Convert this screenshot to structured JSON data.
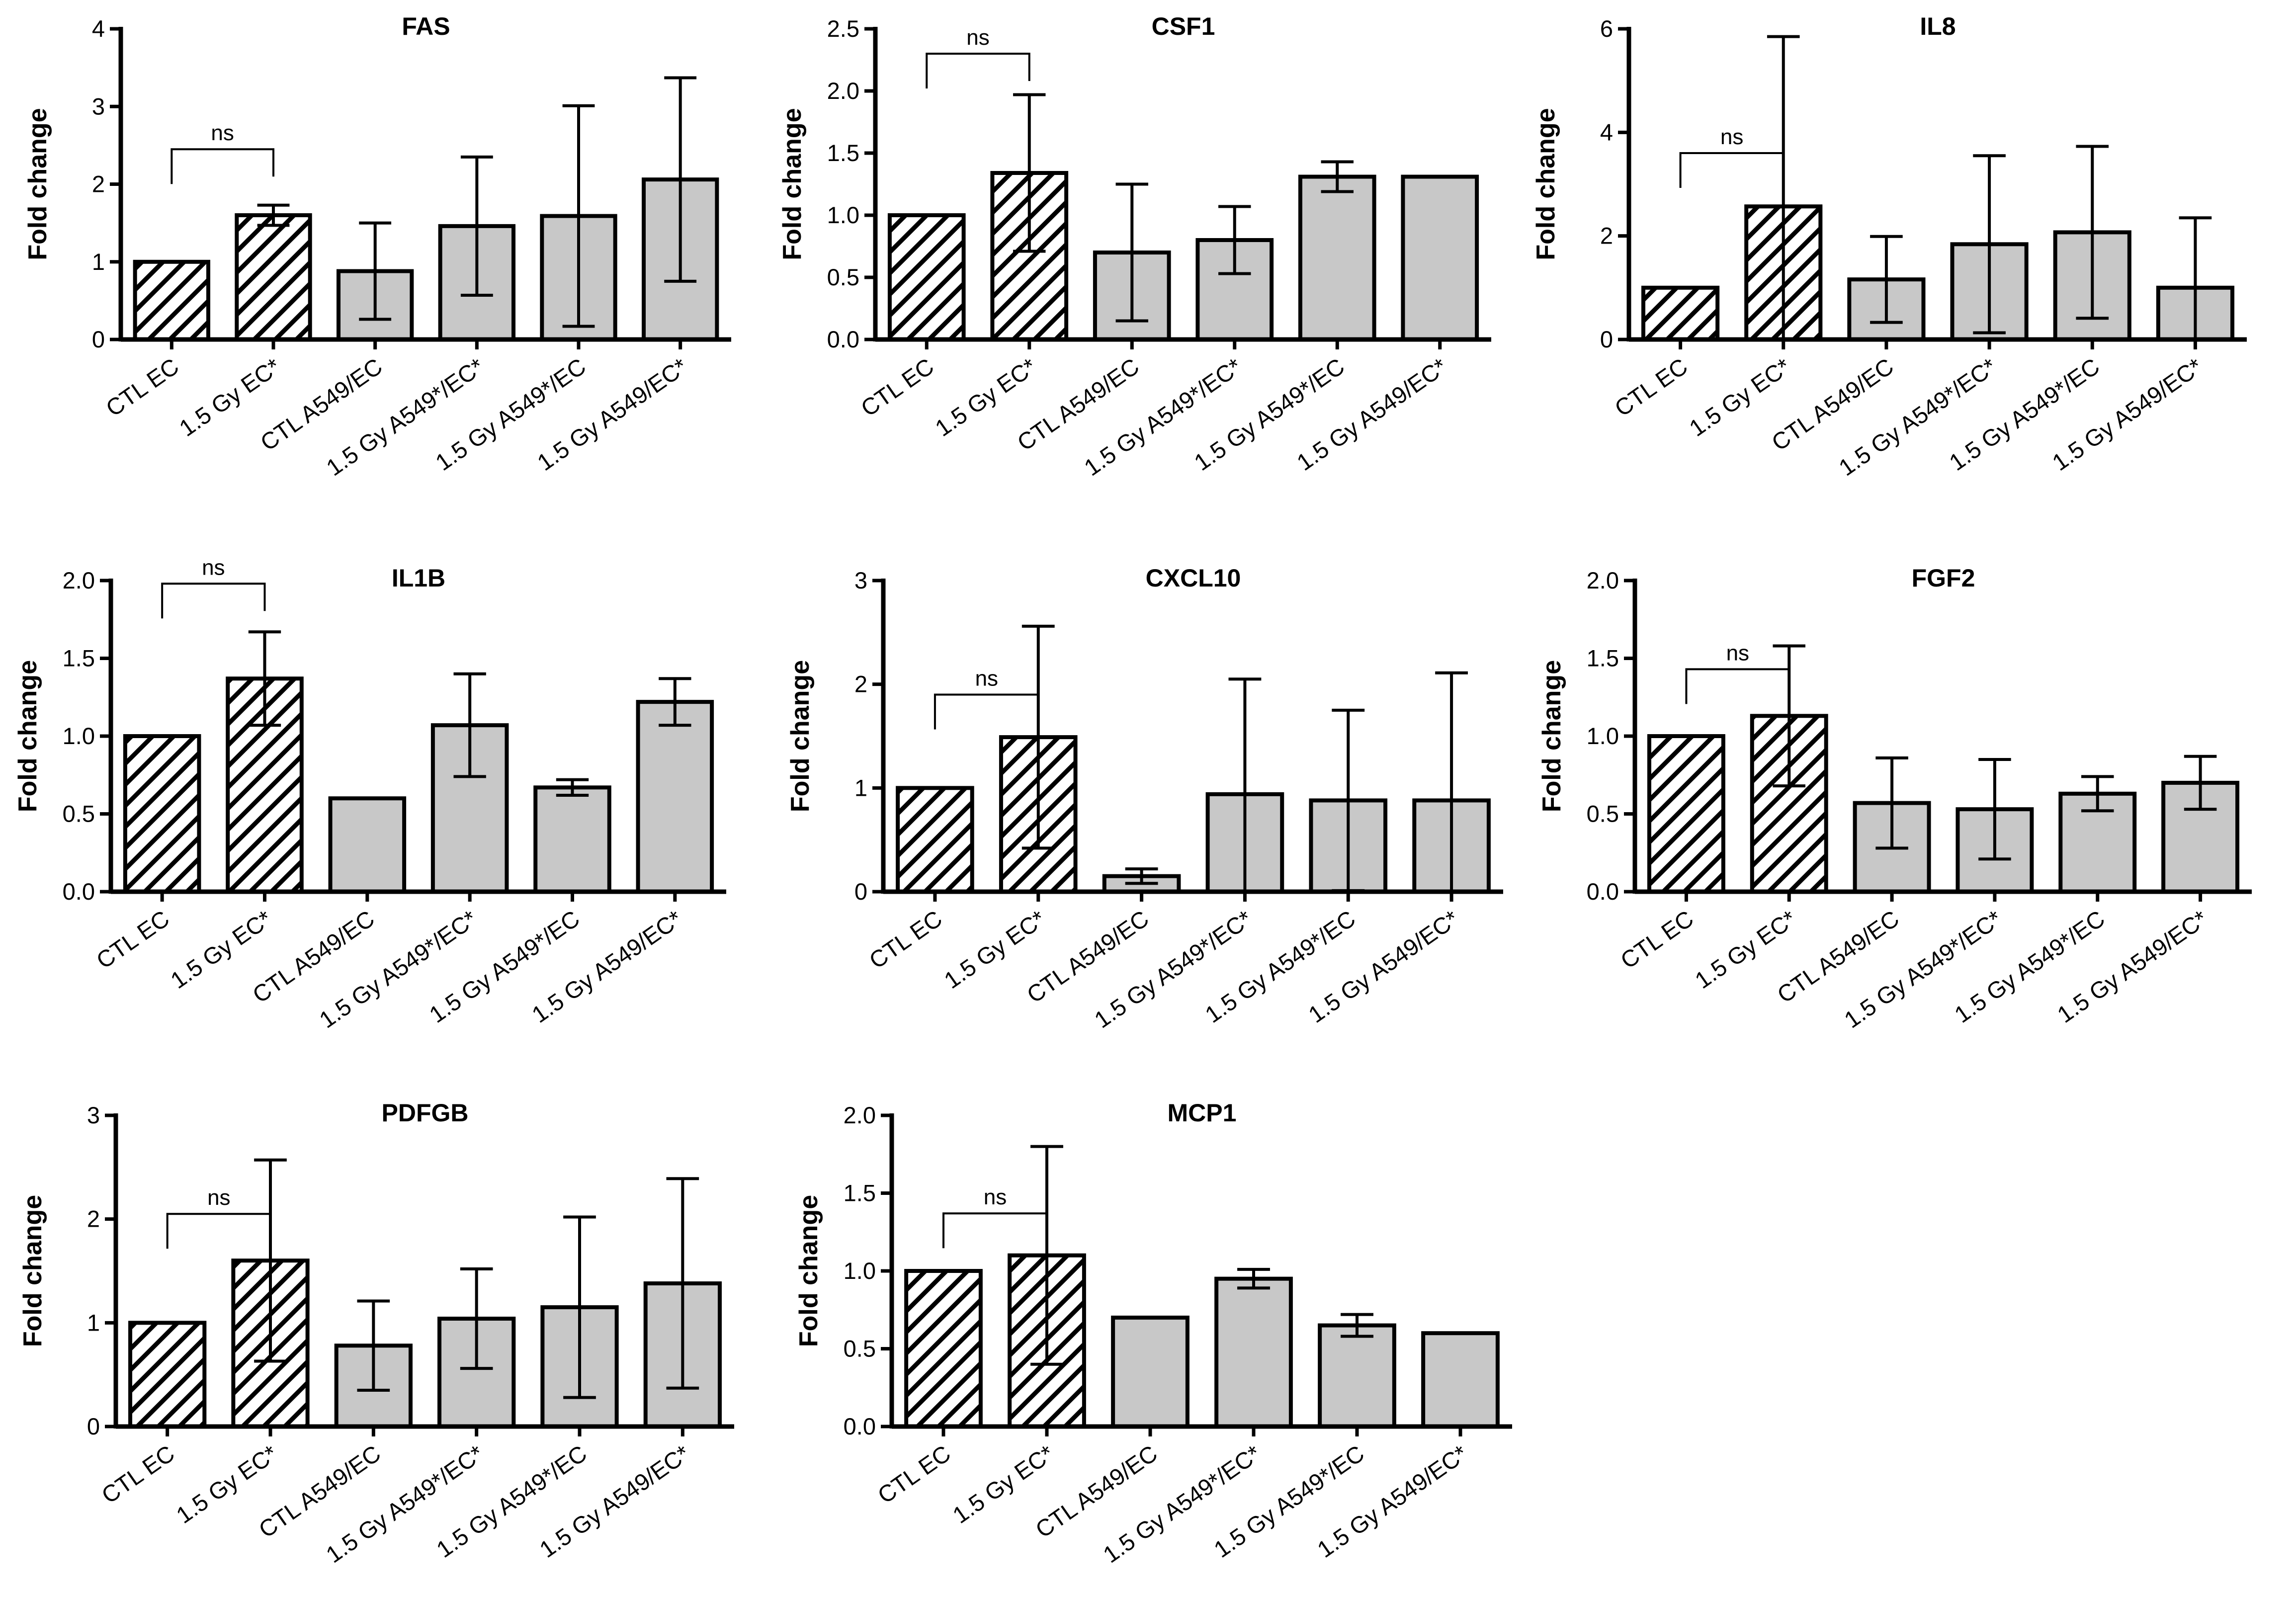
{
  "figure": {
    "colors": {
      "bar_fill": "#c8c8c8",
      "hatch_bg": "#ffffff",
      "line": "#000000"
    },
    "categories": [
      "CTL EC",
      "1.5 Gy EC*",
      "CTL A549/EC",
      "1.5 Gy A549*/EC*",
      "1.5 Gy A549*/EC",
      "1.5 Gy A549/EC*"
    ],
    "bar_styles": [
      "hatched",
      "hatched",
      "gray",
      "gray",
      "gray",
      "gray"
    ],
    "significance_label": "ns"
  },
  "chart_data": [
    {
      "type": "bar",
      "title": "FAS",
      "ylabel": "Fold change",
      "xlabel": "",
      "ylim": [
        0,
        4
      ],
      "yticks": [
        "0",
        "1",
        "2",
        "3",
        "4"
      ],
      "values": [
        1.0,
        1.6,
        0.88,
        1.46,
        1.59,
        2.06
      ],
      "errors": [
        0,
        0.13,
        0.62,
        0.89,
        1.42,
        1.31
      ],
      "annotation": {
        "from": 0,
        "to": 1,
        "text": "ns",
        "y": 2.45
      }
    },
    {
      "type": "bar",
      "title": "CSF1",
      "ylabel": "Fold change",
      "xlabel": "",
      "ylim": [
        0,
        2.5
      ],
      "yticks": [
        "0.0",
        "0.5",
        "1.0",
        "1.5",
        "2.0",
        "2.5"
      ],
      "values": [
        1.0,
        1.34,
        0.7,
        0.8,
        1.31,
        1.31
      ],
      "errors": [
        0,
        0.63,
        0.55,
        0.27,
        0.12,
        0
      ],
      "annotation": {
        "from": 0,
        "to": 1,
        "text": "ns",
        "y": 2.3
      }
    },
    {
      "type": "bar",
      "title": "IL8",
      "ylabel": "Fold change",
      "xlabel": "",
      "ylim": [
        0,
        6
      ],
      "yticks": [
        "0",
        "2",
        "4",
        "6"
      ],
      "values": [
        1.0,
        2.57,
        1.16,
        1.84,
        2.07,
        1.0
      ],
      "errors": [
        0,
        3.28,
        0.83,
        1.71,
        1.66,
        1.35
      ],
      "annotation": {
        "from": 0,
        "to": 1,
        "text": "ns",
        "y": 3.6
      }
    },
    {
      "type": "bar",
      "title": "IL1B",
      "ylabel": "Fold change",
      "xlabel": "",
      "ylim": [
        0,
        2.0
      ],
      "yticks": [
        "0.0",
        "0.5",
        "1.0",
        "1.5",
        "2.0"
      ],
      "values": [
        1.0,
        1.37,
        0.6,
        1.07,
        0.67,
        1.22
      ],
      "errors": [
        0,
        0.3,
        0,
        0.33,
        0.05,
        0.15
      ],
      "annotation": {
        "from": 0,
        "to": 1,
        "text": "ns",
        "y": 1.98
      }
    },
    {
      "type": "bar",
      "title": "CXCL10",
      "ylabel": "Fold change",
      "xlabel": "",
      "ylim": [
        0,
        3
      ],
      "yticks": [
        "0",
        "1",
        "2",
        "3"
      ],
      "values": [
        1.0,
        1.49,
        0.15,
        0.94,
        0.88,
        0.88
      ],
      "errors": [
        0,
        1.07,
        0.07,
        1.11,
        0.87,
        1.23
      ],
      "annotation": {
        "from": 0,
        "to": 1,
        "text": "ns",
        "y": 1.9
      }
    },
    {
      "type": "bar",
      "title": "FGF2",
      "ylabel": "Fold change",
      "xlabel": "",
      "ylim": [
        0,
        2.0
      ],
      "yticks": [
        "0.0",
        "0.5",
        "1.0",
        "1.5",
        "2.0"
      ],
      "values": [
        1.0,
        1.13,
        0.57,
        0.53,
        0.63,
        0.7
      ],
      "errors": [
        0,
        0.45,
        0.29,
        0.32,
        0.11,
        0.17
      ],
      "annotation": {
        "from": 0,
        "to": 1,
        "text": "ns",
        "y": 1.43
      }
    },
    {
      "type": "bar",
      "title": "PDFGB",
      "ylabel": "Fold change",
      "xlabel": "",
      "ylim": [
        0,
        3
      ],
      "yticks": [
        "0",
        "1",
        "2",
        "3"
      ],
      "values": [
        1.0,
        1.6,
        0.78,
        1.04,
        1.15,
        1.38
      ],
      "errors": [
        0,
        0.97,
        0.43,
        0.48,
        0.87,
        1.01
      ],
      "annotation": {
        "from": 0,
        "to": 1,
        "text": "ns",
        "y": 2.05
      }
    },
    {
      "type": "bar",
      "title": "MCP1",
      "ylabel": "Fold change",
      "xlabel": "",
      "ylim": [
        0,
        2.0
      ],
      "yticks": [
        "0.0",
        "0.5",
        "1.0",
        "1.5",
        "2.0"
      ],
      "values": [
        1.0,
        1.1,
        0.7,
        0.95,
        0.65,
        0.6
      ],
      "errors": [
        0,
        0.7,
        0,
        0.06,
        0.07,
        0
      ],
      "annotation": {
        "from": 0,
        "to": 1,
        "text": "ns",
        "y": 1.37
      }
    }
  ]
}
